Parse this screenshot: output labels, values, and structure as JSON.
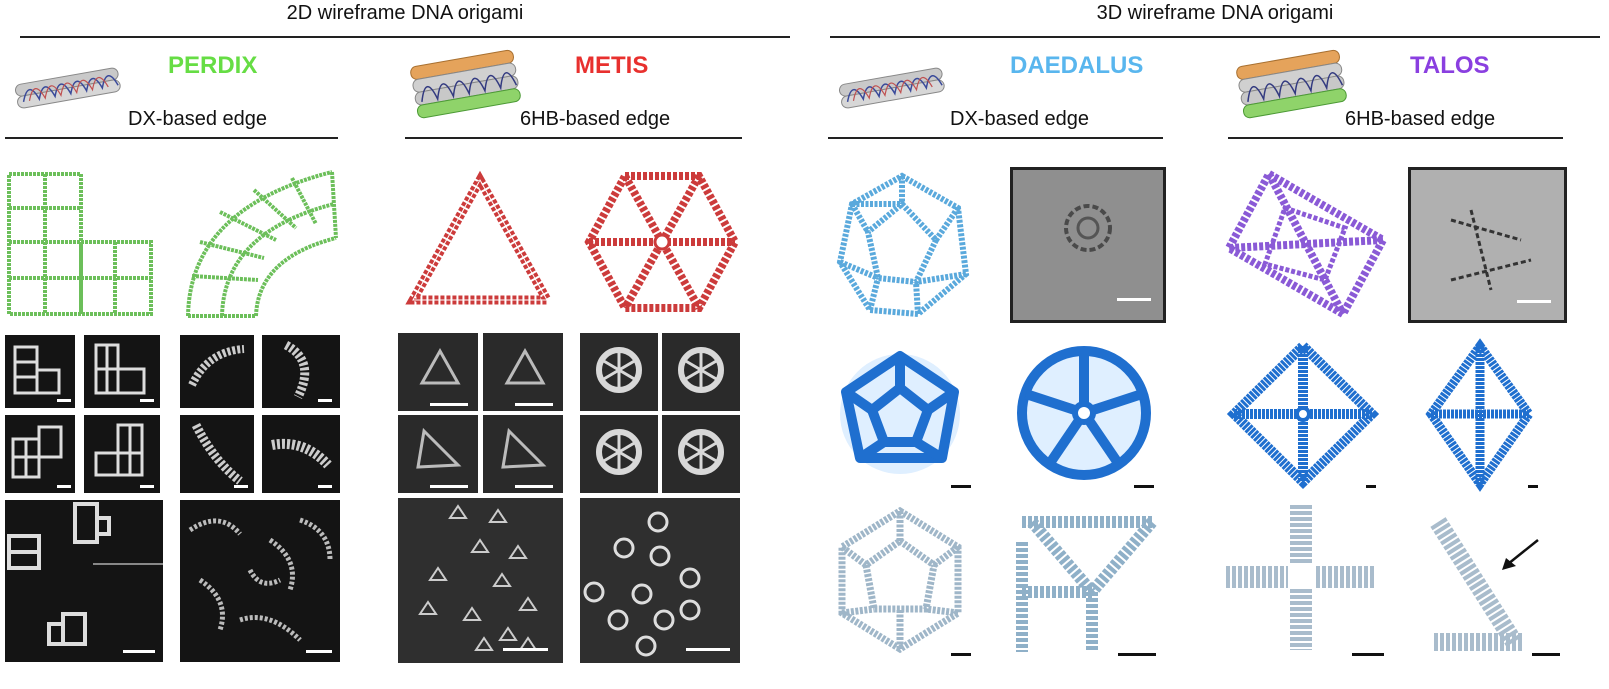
{
  "sections": {
    "left_title": "2D wireframe DNA origami",
    "right_title": "3D wireframe DNA origami"
  },
  "tools": [
    {
      "name": "PERDIX",
      "edge": "DX-based edge",
      "color": "#66dd44"
    },
    {
      "name": "METIS",
      "edge": "6HB-based edge",
      "color": "#e8302e"
    },
    {
      "name": "DAEDALUS",
      "edge": "DX-based edge",
      "color": "#59b6ee"
    },
    {
      "name": "TALOS",
      "edge": "6HB-based edge",
      "color": "#8a3fe0"
    }
  ],
  "colors": {
    "perdix_model": "#6cbf5a",
    "metis_model": "#cc3b3b",
    "daedalus_model": "#5aa9dc",
    "talos_model": "#8a5ad6",
    "cryo_map": "#1f6fcf",
    "micrograph_bg": "#151515",
    "cryo_em_bg": "#8f8f8f"
  },
  "icons": [
    "dx-helix-bundle-icon",
    "6hb-helix-bundle-icon",
    "arrow-icon"
  ]
}
